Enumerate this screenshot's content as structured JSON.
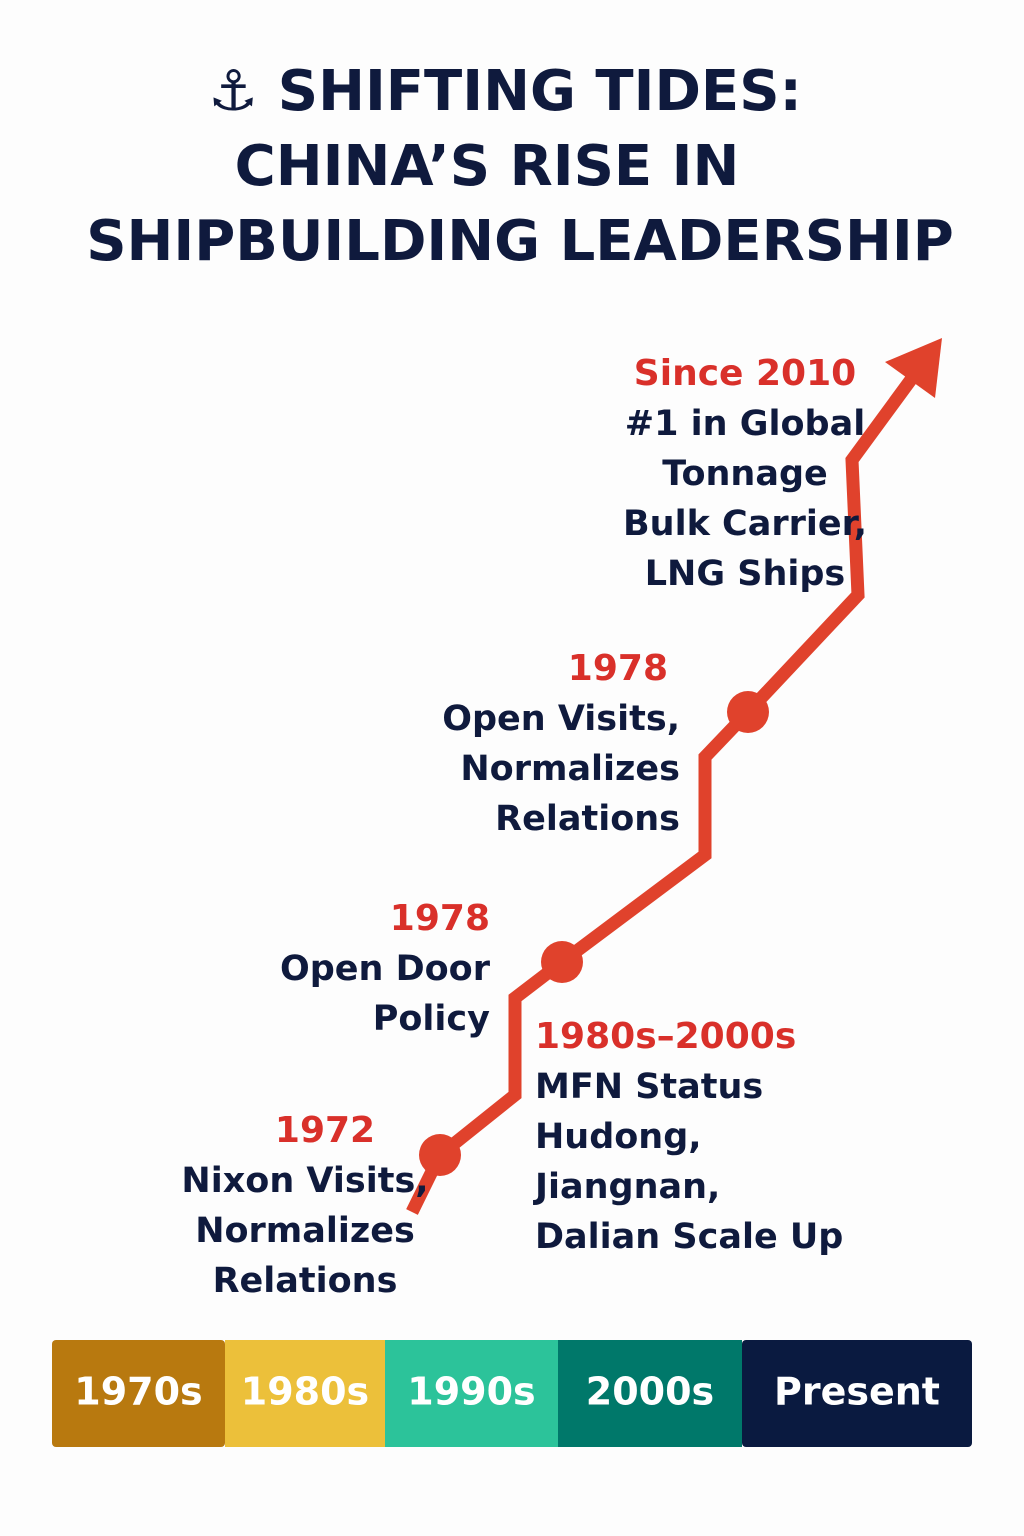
{
  "title": {
    "lines": [
      "⚓ SHIFTING TIDES:",
      "CHINA’S RISE IN",
      "SHIPBUILDING LEADERSHIP"
    ]
  },
  "milestones": [
    {
      "year": "Since 2010",
      "lines": [
        "#1 in Global",
        "Tonnage",
        "Bulk Carrier,",
        "LNG Ships"
      ]
    },
    {
      "year": "1978",
      "lines": [
        "Open Visits,",
        "Normalizes",
        "Relations"
      ]
    },
    {
      "year": "1978",
      "lines": [
        "Open Door",
        "Policy"
      ]
    },
    {
      "year": "1980s–2000s",
      "lines": [
        "MFN Status",
        "Hudong,",
        "Jiangnan,",
        "Dalian Scale Up"
      ]
    },
    {
      "year": "1972",
      "lines": [
        "Nixon Visits,",
        "Normalizes",
        "Relations"
      ]
    }
  ],
  "eras": [
    {
      "label": "1970s",
      "color": "#b8790f"
    },
    {
      "label": "1980s",
      "color": "#ecc03a"
    },
    {
      "label": "1990s",
      "color": "#2cc39a"
    },
    {
      "label": "2000s",
      "color": "#00786a"
    },
    {
      "label": "Present",
      "color": "#0a1a40"
    }
  ]
}
